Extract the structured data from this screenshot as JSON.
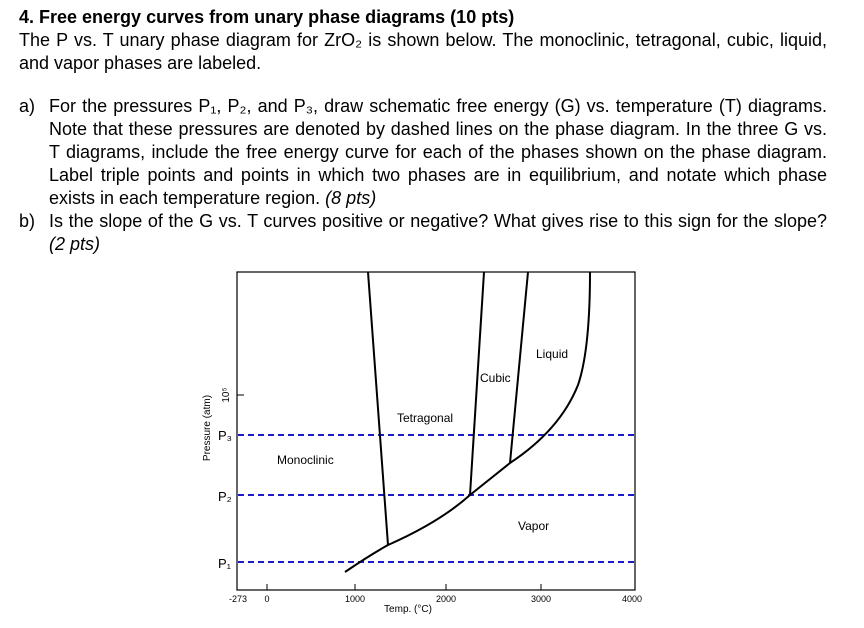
{
  "header": {
    "title": "4. Free energy curves from unary phase diagrams (10 pts)",
    "intro": "The P vs. T unary phase diagram for ZrO₂ is shown below. The monoclinic, tetragonal, cubic, liquid, and vapor phases are labeled."
  },
  "questions": [
    {
      "label": "a)",
      "text": "For the pressures P₁, P₂, and P₃, draw schematic free energy (G) vs. temperature (T) diagrams. Note that these pressures are denoted by dashed lines on the phase diagram. In the three G vs. T diagrams, include the free energy curve for each of the phases shown on the phase diagram. Label triple points and points in which two phases are in equilibrium, and notate which phase exists in each temperature region.",
      "points": "(8 pts)"
    },
    {
      "label": "b)",
      "text": "Is the slope of the G vs. T curves positive or negative? What gives rise to this sign for the slope?",
      "points": "(2 pts)"
    }
  ],
  "diagram": {
    "y_axis_label": "Pressure (atm)",
    "x_axis_label": "Temp. (°C)",
    "x_tick_labels": [
      "-273",
      "0",
      "1000",
      "2000",
      "3000",
      "4000"
    ],
    "top_label": "10⁵",
    "pressure_labels": [
      "P₁",
      "P₂",
      "P₃"
    ],
    "phases": [
      "Monoclinic",
      "Tetragonal",
      "Cubic",
      "Liquid",
      "Vapor"
    ]
  }
}
